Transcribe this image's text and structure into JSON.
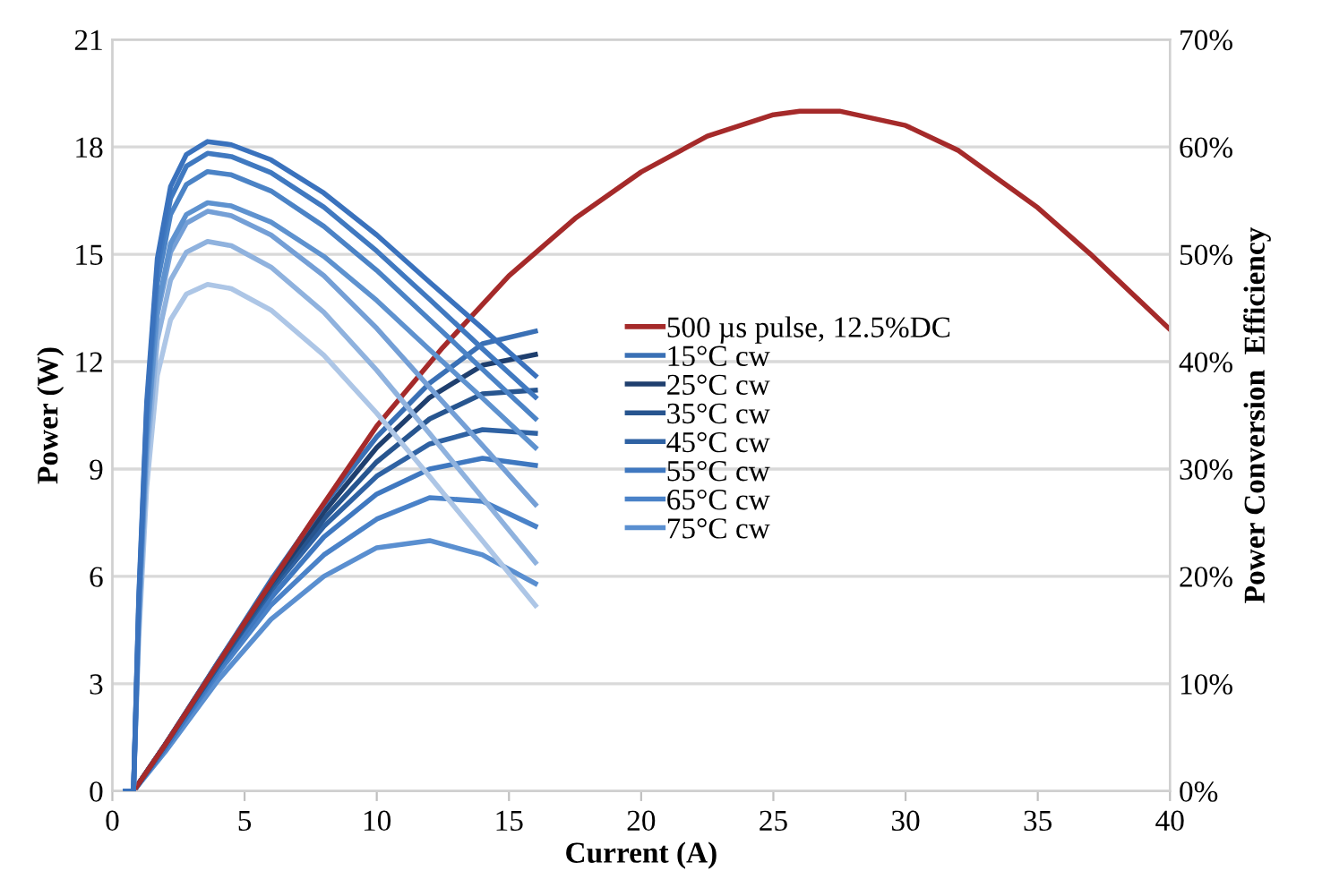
{
  "chart_data": {
    "type": "line",
    "xlabel": "Current (A)",
    "ylabel": "Power (W)",
    "y2label": "Power Conversion  Efficiency",
    "xlim": [
      0,
      40
    ],
    "xticks": [
      0,
      5,
      10,
      15,
      20,
      25,
      30,
      35,
      40
    ],
    "ylim": [
      0,
      21
    ],
    "yticks": [
      0,
      3,
      6,
      9,
      12,
      15,
      18,
      21
    ],
    "y2lim": [
      0,
      70
    ],
    "y2ticks": [
      {
        "value": 0,
        "label": "0%"
      },
      {
        "value": 10,
        "label": "10%"
      },
      {
        "value": 20,
        "label": "20%"
      },
      {
        "value": 30,
        "label": "30%"
      },
      {
        "value": 40,
        "label": "40%"
      },
      {
        "value": 50,
        "label": "50%"
      },
      {
        "value": 60,
        "label": "60%"
      },
      {
        "value": 70,
        "label": "70%"
      }
    ],
    "grid": "y",
    "legend": "center",
    "line_style": "solid",
    "marker": "none",
    "series": [
      {
        "name": "500 µs pulse, 12.5%DC",
        "color": "#a52a2a",
        "x": [
          0.8,
          2,
          5,
          7.5,
          10,
          12.5,
          15,
          17.5,
          20,
          22.5,
          25,
          26,
          27.5,
          30,
          32,
          35,
          37,
          40
        ],
        "values": [
          0,
          1.3,
          4.7,
          7.5,
          10.2,
          12.4,
          14.4,
          16.0,
          17.3,
          18.3,
          18.9,
          19.0,
          19.0,
          18.6,
          17.9,
          16.3,
          15.0,
          12.9
        ]
      },
      {
        "name": "15°C cw",
        "color": "#3a70b5",
        "x": [
          0.8,
          2,
          4,
          6,
          8,
          10,
          12,
          14,
          16
        ],
        "values": [
          0,
          1.3,
          3.6,
          5.9,
          8.0,
          9.9,
          11.4,
          12.5,
          12.85
        ]
      },
      {
        "name": "25°C cw",
        "color": "#1f3f6e",
        "x": [
          0.8,
          2,
          4,
          6,
          8,
          10,
          12,
          14,
          16
        ],
        "values": [
          0,
          1.3,
          3.6,
          5.8,
          7.8,
          9.6,
          11.0,
          11.9,
          12.2
        ]
      },
      {
        "name": "35°C cw",
        "color": "#27558f",
        "x": [
          0.8,
          2,
          4,
          6,
          8,
          10,
          12,
          14,
          16
        ],
        "values": [
          0,
          1.3,
          3.5,
          5.7,
          7.6,
          9.2,
          10.4,
          11.1,
          11.2
        ]
      },
      {
        "name": "45°C cw",
        "color": "#2f62a3",
        "x": [
          0.8,
          2,
          4,
          6,
          8,
          10,
          12,
          14,
          16
        ],
        "values": [
          0,
          1.3,
          3.5,
          5.6,
          7.4,
          8.8,
          9.7,
          10.1,
          10.0
        ]
      },
      {
        "name": "55°C cw",
        "color": "#3f78c0",
        "x": [
          0.8,
          2,
          4,
          6,
          8,
          10,
          12,
          14,
          16
        ],
        "values": [
          0,
          1.2,
          3.4,
          5.4,
          7.1,
          8.3,
          9.0,
          9.3,
          9.1
        ]
      },
      {
        "name": "65°C cw",
        "color": "#4a82c8",
        "x": [
          0.8,
          2,
          4,
          6,
          8,
          10,
          12,
          14,
          16
        ],
        "values": [
          0,
          1.2,
          3.3,
          5.2,
          6.6,
          7.6,
          8.2,
          8.1,
          7.4
        ]
      },
      {
        "name": "75°C cw",
        "color": "#5a8fd0",
        "x": [
          0.8,
          2,
          4,
          6,
          8,
          10,
          12,
          14,
          16
        ],
        "values": [
          0,
          1.1,
          3.1,
          4.8,
          6.0,
          6.8,
          7.0,
          6.6,
          5.8
        ]
      },
      {
        "axis": "y2",
        "color": "#3a72bd",
        "x": [
          0.5,
          0.8,
          1.0,
          1.3,
          1.7,
          2.2,
          2.8,
          3.6,
          4.5,
          6,
          8,
          10,
          12,
          14,
          16
        ],
        "values": [
          0,
          0,
          18.2,
          36.3,
          49.6,
          56.3,
          59.3,
          60.5,
          60.2,
          58.8,
          55.7,
          51.8,
          47.4,
          43.1,
          38.7
        ]
      },
      {
        "axis": "y2",
        "color": "#4079c0",
        "x": [
          0.5,
          0.8,
          1.0,
          1.3,
          1.7,
          2.2,
          2.8,
          3.6,
          4.5,
          6,
          8,
          10,
          12,
          14,
          16
        ],
        "values": [
          0,
          0,
          17.8,
          35.6,
          48.7,
          55.2,
          58.2,
          59.4,
          59.1,
          57.6,
          54.4,
          50.3,
          45.8,
          41.2,
          36.7
        ]
      },
      {
        "axis": "y2",
        "color": "#4b83c6",
        "x": [
          0.5,
          0.8,
          1.0,
          1.3,
          1.7,
          2.2,
          2.8,
          3.6,
          4.5,
          6,
          8,
          10,
          12,
          14,
          16
        ],
        "values": [
          0,
          0,
          17.3,
          34.6,
          47.3,
          53.7,
          56.5,
          57.7,
          57.4,
          55.9,
          52.6,
          48.5,
          43.9,
          39.3,
          34.7
        ]
      },
      {
        "axis": "y2",
        "color": "#5e92cf",
        "x": [
          0.5,
          0.8,
          1.0,
          1.3,
          1.7,
          2.2,
          2.8,
          3.6,
          4.5,
          6,
          8,
          10,
          12,
          14,
          16
        ],
        "values": [
          0,
          0,
          16.4,
          32.9,
          44.9,
          51,
          53.7,
          54.8,
          54.5,
          53,
          49.8,
          45.7,
          41.1,
          36.6,
          32
        ]
      },
      {
        "axis": "y2",
        "color": "#749fd6",
        "x": [
          0.5,
          0.8,
          1.0,
          1.3,
          1.7,
          2.2,
          2.8,
          3.6,
          4.5,
          6,
          8,
          10,
          12,
          14,
          16
        ],
        "values": [
          0,
          0,
          16.2,
          32.4,
          44.3,
          50.2,
          52.9,
          54,
          53.6,
          51.8,
          48,
          43.1,
          37.6,
          32.2,
          26.7
        ]
      },
      {
        "axis": "y2",
        "color": "#8fb2de",
        "x": [
          0.5,
          0.8,
          1.0,
          1.3,
          1.7,
          2.2,
          2.8,
          3.6,
          4.5,
          6,
          8,
          10,
          12,
          14,
          16
        ],
        "values": [
          0,
          0,
          15.4,
          30.7,
          42,
          47.6,
          50.2,
          51.2,
          50.8,
          48.8,
          44.6,
          39.2,
          33.3,
          27.3,
          21.3
        ]
      },
      {
        "axis": "y2",
        "color": "#adc6e6",
        "x": [
          0.5,
          0.8,
          1.0,
          1.3,
          1.7,
          2.2,
          2.8,
          3.6,
          4.5,
          6,
          8,
          10,
          12,
          14,
          16
        ],
        "values": [
          0,
          0,
          14.2,
          28.3,
          38.7,
          43.9,
          46.3,
          47.2,
          46.8,
          44.8,
          40.6,
          35.2,
          29.3,
          23.3,
          17.3
        ]
      }
    ]
  }
}
